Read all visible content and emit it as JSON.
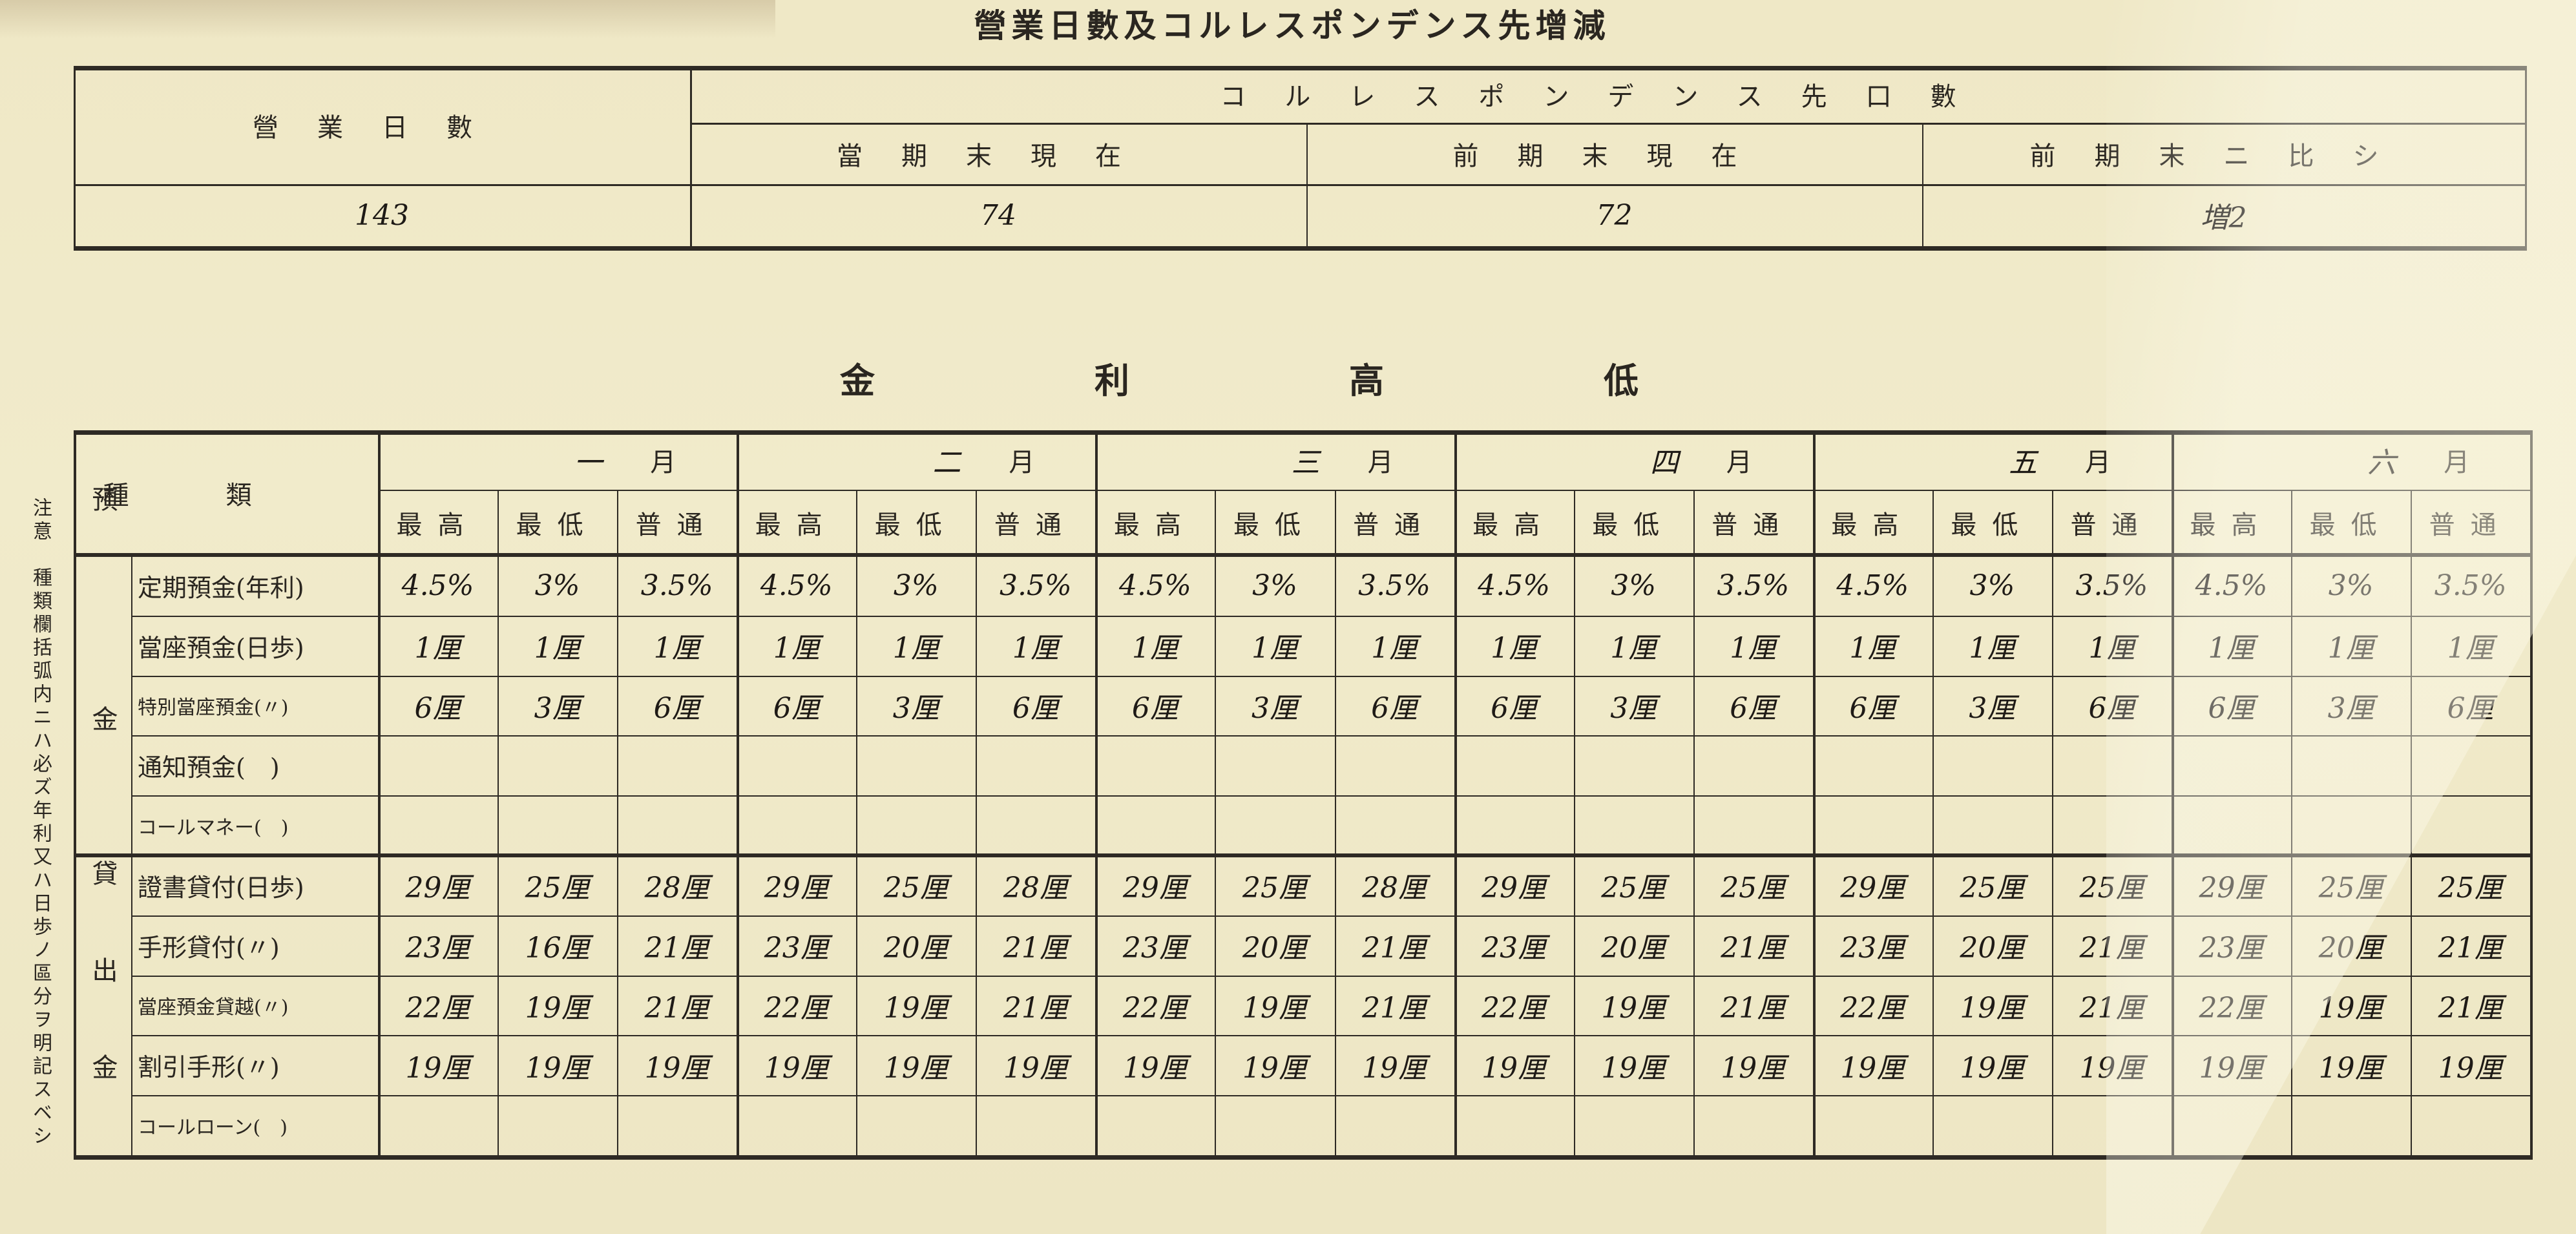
{
  "title": "營業日數及コルレスポンデンス先增減",
  "summary_table": {
    "business_days_label": "營業日數",
    "correspondent_label": "コルレスポンデンス先口數",
    "columns": [
      "當期末現在",
      "前期末現在",
      "前期末ニ比シ"
    ],
    "business_days_value": "143",
    "values": [
      "74",
      "72",
      "増2"
    ]
  },
  "rates_title": "金利高低",
  "rates_table": {
    "type_header": "種類",
    "month_suffix": "月",
    "months": [
      "一",
      "二",
      "三",
      "四",
      "五",
      "六"
    ],
    "subheaders": [
      "最高",
      "最低",
      "普通"
    ],
    "groups": [
      {
        "label": "預金",
        "rows": [
          {
            "label": "定期預金(年利)",
            "values": [
              [
                "4.5%",
                "3%",
                "3.5%"
              ],
              [
                "4.5%",
                "3%",
                "3.5%"
              ],
              [
                "4.5%",
                "3%",
                "3.5%"
              ],
              [
                "4.5%",
                "3%",
                "3.5%"
              ],
              [
                "4.5%",
                "3%",
                "3.5%"
              ],
              [
                "4.5%",
                "3%",
                "3.5%"
              ]
            ]
          },
          {
            "label": "當座預金(日歩)",
            "values": [
              [
                "1厘",
                "1厘",
                "1厘"
              ],
              [
                "1厘",
                "1厘",
                "1厘"
              ],
              [
                "1厘",
                "1厘",
                "1厘"
              ],
              [
                "1厘",
                "1厘",
                "1厘"
              ],
              [
                "1厘",
                "1厘",
                "1厘"
              ],
              [
                "1厘",
                "1厘",
                "1厘"
              ]
            ]
          },
          {
            "label": "特別當座預金(〃)",
            "values": [
              [
                "6厘",
                "3厘",
                "6厘"
              ],
              [
                "6厘",
                "3厘",
                "6厘"
              ],
              [
                "6厘",
                "3厘",
                "6厘"
              ],
              [
                "6厘",
                "3厘",
                "6厘"
              ],
              [
                "6厘",
                "3厘",
                "6厘"
              ],
              [
                "6厘",
                "3厘",
                "6厘"
              ]
            ]
          },
          {
            "label": "通知預金(　)",
            "values": [
              [
                "",
                "",
                ""
              ],
              [
                "",
                "",
                ""
              ],
              [
                "",
                "",
                ""
              ],
              [
                "",
                "",
                ""
              ],
              [
                "",
                "",
                ""
              ],
              [
                "",
                "",
                ""
              ]
            ]
          },
          {
            "label": "コールマネー(　)",
            "values": [
              [
                "",
                "",
                ""
              ],
              [
                "",
                "",
                ""
              ],
              [
                "",
                "",
                ""
              ],
              [
                "",
                "",
                ""
              ],
              [
                "",
                "",
                ""
              ],
              [
                "",
                "",
                ""
              ]
            ]
          }
        ]
      },
      {
        "label": "貸出金",
        "rows": [
          {
            "label": "證書貸付(日歩)",
            "values": [
              [
                "29厘",
                "25厘",
                "28厘"
              ],
              [
                "29厘",
                "25厘",
                "28厘"
              ],
              [
                "29厘",
                "25厘",
                "28厘"
              ],
              [
                "29厘",
                "25厘",
                "25厘"
              ],
              [
                "29厘",
                "25厘",
                "25厘"
              ],
              [
                "29厘",
                "25厘",
                "25厘"
              ]
            ]
          },
          {
            "label": "手形貸付(〃)",
            "values": [
              [
                "23厘",
                "16厘",
                "21厘"
              ],
              [
                "23厘",
                "20厘",
                "21厘"
              ],
              [
                "23厘",
                "20厘",
                "21厘"
              ],
              [
                "23厘",
                "20厘",
                "21厘"
              ],
              [
                "23厘",
                "20厘",
                "21厘"
              ],
              [
                "23厘",
                "20厘",
                "21厘"
              ]
            ]
          },
          {
            "label": "當座預金貸越(〃)",
            "values": [
              [
                "22厘",
                "19厘",
                "21厘"
              ],
              [
                "22厘",
                "19厘",
                "21厘"
              ],
              [
                "22厘",
                "19厘",
                "21厘"
              ],
              [
                "22厘",
                "19厘",
                "21厘"
              ],
              [
                "22厘",
                "19厘",
                "21厘"
              ],
              [
                "22厘",
                "19厘",
                "21厘"
              ]
            ]
          },
          {
            "label": "割引手形(〃)",
            "values": [
              [
                "19厘",
                "19厘",
                "19厘"
              ],
              [
                "19厘",
                "19厘",
                "19厘"
              ],
              [
                "19厘",
                "19厘",
                "19厘"
              ],
              [
                "19厘",
                "19厘",
                "19厘"
              ],
              [
                "19厘",
                "19厘",
                "19厘"
              ],
              [
                "19厘",
                "19厘",
                "19厘"
              ]
            ]
          },
          {
            "label": "コールローン(　)",
            "values": [
              [
                "",
                "",
                ""
              ],
              [
                "",
                "",
                ""
              ],
              [
                "",
                "",
                ""
              ],
              [
                "",
                "",
                ""
              ],
              [
                "",
                "",
                ""
              ],
              [
                "",
                "",
                ""
              ]
            ]
          }
        ]
      }
    ]
  },
  "note": "注意　種類欄括弧内ニハ必ズ年利又ハ日歩ノ區分ヲ明記スベシ",
  "colors": {
    "paper": "#efe8c6",
    "ink": "#2a2620"
  }
}
